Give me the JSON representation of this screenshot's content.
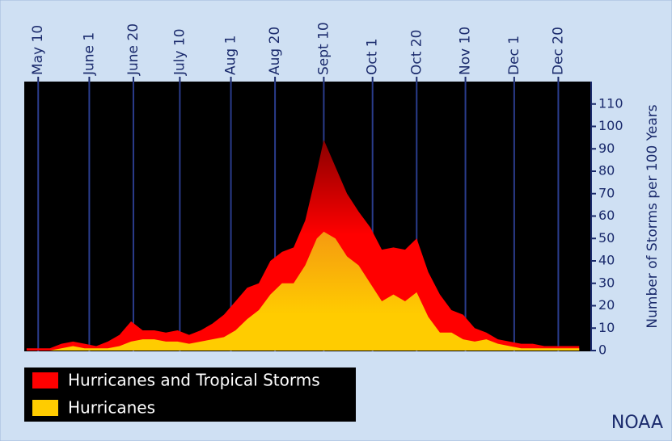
{
  "chart_data": {
    "type": "area",
    "y_label": "Number of Storms per 100 Years",
    "source": "NOAA",
    "x": [
      "May 5",
      "May 10",
      "May 15",
      "May 20",
      "May 25",
      "May 30",
      "Jun 4",
      "Jun 9",
      "Jun 14",
      "Jun 19",
      "Jun 24",
      "Jun 29",
      "Jul 4",
      "Jul 9",
      "Jul 14",
      "Jul 19",
      "Jul 24",
      "Jul 29",
      "Aug 3",
      "Aug 8",
      "Aug 13",
      "Aug 18",
      "Aug 23",
      "Aug 28",
      "Sep 2",
      "Sep 7",
      "Sep 10",
      "Sep 15",
      "Sep 20",
      "Sep 25",
      "Sep 30",
      "Oct 5",
      "Oct 10",
      "Oct 15",
      "Oct 20",
      "Oct 25",
      "Oct 30",
      "Nov 4",
      "Nov 9",
      "Nov 14",
      "Nov 19",
      "Nov 24",
      "Nov 29",
      "Dec 4",
      "Dec 9",
      "Dec 14",
      "Dec 19",
      "Dec 24",
      "Dec 29"
    ],
    "series": [
      {
        "name": "Hurricanes and Tropical Storms",
        "color": "#ff0000",
        "values": [
          1,
          1,
          1,
          3,
          4,
          3,
          2,
          4,
          7,
          13,
          9,
          9,
          8,
          9,
          7,
          9,
          12,
          16,
          22,
          28,
          30,
          40,
          44,
          46,
          58,
          80,
          94,
          82,
          70,
          62,
          55,
          45,
          46,
          45,
          50,
          35,
          25,
          18,
          16,
          10,
          8,
          5,
          4,
          3,
          3,
          2,
          2,
          2,
          2
        ]
      },
      {
        "name": "Hurricanes",
        "color": "#ffcc00",
        "values": [
          0,
          0,
          0,
          1,
          2,
          1,
          1,
          1,
          2,
          4,
          5,
          5,
          4,
          4,
          3,
          4,
          5,
          6,
          9,
          14,
          18,
          25,
          30,
          30,
          38,
          50,
          53,
          50,
          42,
          38,
          30,
          22,
          25,
          22,
          26,
          15,
          8,
          8,
          5,
          4,
          5,
          3,
          2,
          1,
          1,
          1,
          1,
          1,
          1
        ]
      }
    ],
    "xlim": [
      "May 4",
      "Dec 31"
    ],
    "xticks": [
      "May 10",
      "June 1",
      "June 20",
      "July 10",
      "Aug 1",
      "Aug 20",
      "Sept 10",
      "Oct 1",
      "Oct 20",
      "Nov 10",
      "Dec 1",
      "Dec 20"
    ],
    "ylim": [
      0,
      120
    ],
    "yticks": [
      0,
      10,
      20,
      30,
      40,
      50,
      60,
      70,
      80,
      90,
      100,
      110
    ],
    "grid": true
  }
}
